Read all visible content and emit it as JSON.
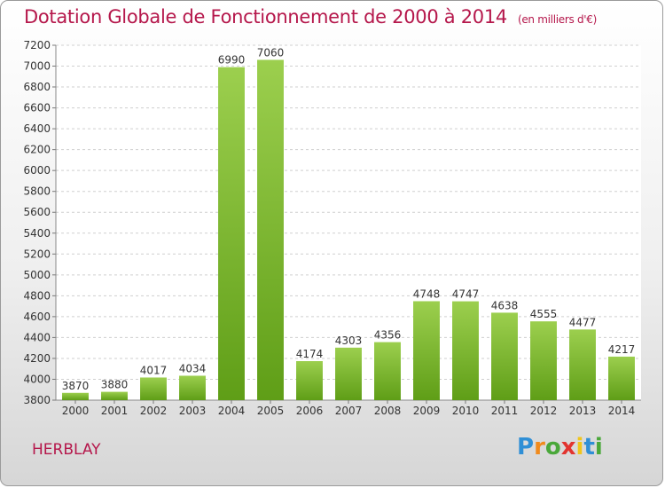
{
  "chart_data": {
    "type": "bar",
    "title": "Dotation Globale de Fonctionnement de 2000 à 2014",
    "subtitle": "(en milliers d'€)",
    "categories": [
      "2000",
      "2001",
      "2002",
      "2003",
      "2004",
      "2005",
      "2006",
      "2007",
      "2008",
      "2009",
      "2010",
      "2011",
      "2012",
      "2013",
      "2014"
    ],
    "values": [
      3870,
      3880,
      4017,
      4034,
      6990,
      7060,
      4174,
      4303,
      4356,
      4748,
      4747,
      4638,
      4555,
      4477,
      4217
    ],
    "ylim": [
      3800,
      7200
    ],
    "ytick_step": 200,
    "grid": true,
    "bar_color": "#7fbd2f",
    "xlabel": "",
    "ylabel": ""
  },
  "commune": "HERBLAY",
  "logo": {
    "letters": [
      "P",
      "r",
      "o",
      "x",
      "i",
      "t",
      "i"
    ],
    "colors": [
      "#2f8fd6",
      "#f08a1c",
      "#4aa83a",
      "#e2342f",
      "#f0c51c",
      "#2f8fd6",
      "#4aa83a"
    ]
  }
}
